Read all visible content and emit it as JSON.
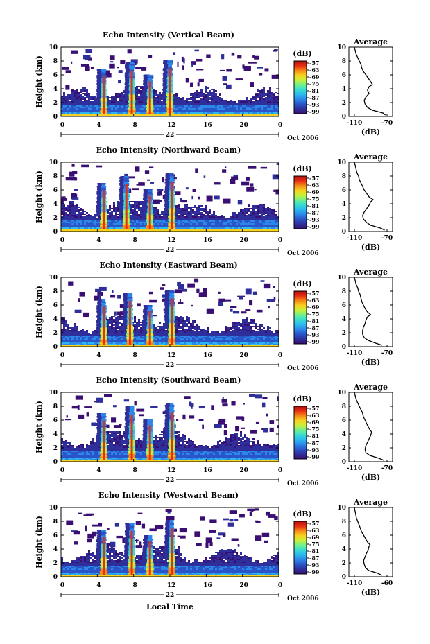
{
  "figure": {
    "x_axis_label": "Local Time",
    "colors": {
      "colormap": [
        "#3a0f73",
        "#2e2f9a",
        "#2a55c8",
        "#2b88e8",
        "#2bb8f0",
        "#37dcd0",
        "#6ff08e",
        "#c9f03a",
        "#f7d21e",
        "#f58a15",
        "#e82d12",
        "#b40f10"
      ],
      "profile_line": "#000000",
      "background": "#ffffff"
    }
  },
  "chart_data": [
    {
      "type": "heatmap",
      "title": "Echo Intensity (Vertical Beam)",
      "ylabel": "Height (km)",
      "xlabel": "",
      "x_ticks": [
        "0",
        "4",
        "8",
        "12",
        "16",
        "20",
        "0"
      ],
      "xlim": [
        0,
        24
      ],
      "y_ticks": [
        "0",
        "2",
        "4",
        "6",
        "8",
        "10"
      ],
      "ylim": [
        0,
        10
      ],
      "date_label": "22",
      "date_suffix": "Oct 2006",
      "colorbar": {
        "unit": "(dB)",
        "ticks": [
          "-57",
          "-63",
          "-69",
          "-75",
          "-81",
          "-87",
          "-93",
          "-99"
        ],
        "range": [
          -99,
          -57
        ]
      },
      "convective_columns_hours": [
        4.7,
        7.8,
        9.8,
        12.0
      ],
      "avg_panel": {
        "title": "Average",
        "xlabel": "(dB)",
        "x_ticks": [
          "-110",
          "-70"
        ],
        "y_ticks": [
          "0",
          "2",
          "4",
          "6",
          "8",
          "10"
        ],
        "profile_height_km": [
          0.2,
          0.5,
          0.9,
          1.3,
          1.8,
          2.3,
          2.8,
          3.3,
          3.8,
          4.3,
          4.6,
          5.0,
          5.5,
          6.0,
          6.5,
          7.0,
          7.5,
          8.0,
          8.5,
          9.0,
          9.5,
          10.0
        ],
        "profile_db": [
          -72,
          -75,
          -88,
          -94,
          -97,
          -98,
          -96,
          -92,
          -94,
          -92,
          -88,
          -90,
          -93,
          -96,
          -99,
          -101,
          -102,
          -104,
          -106,
          -108,
          -109,
          -110
        ]
      }
    },
    {
      "type": "heatmap",
      "title": "Echo Intensity (Northward Beam)",
      "ylabel": "Height (km)",
      "xlabel": "",
      "x_ticks": [
        "0",
        "4",
        "8",
        "12",
        "16",
        "20",
        "0"
      ],
      "xlim": [
        0,
        24
      ],
      "y_ticks": [
        "0",
        "2",
        "4",
        "6",
        "8",
        "10"
      ],
      "ylim": [
        0,
        10
      ],
      "date_label": "22",
      "date_suffix": "Oct 2006",
      "colorbar": {
        "unit": "(dB)",
        "ticks": [
          "-57",
          "-63",
          "-69",
          "-75",
          "-81",
          "-87",
          "-93",
          "-99"
        ],
        "range": [
          -99,
          -57
        ]
      },
      "convective_columns_hours": [
        4.7,
        7.2,
        9.8,
        12.2
      ],
      "avg_panel": {
        "title": "Average",
        "xlabel": "(dB)",
        "x_ticks": [
          "-110",
          "-70"
        ],
        "y_ticks": [
          "0",
          "2",
          "4",
          "6",
          "8",
          "10"
        ],
        "profile_height_km": [
          0.2,
          0.5,
          0.9,
          1.3,
          1.8,
          2.3,
          2.8,
          3.3,
          3.8,
          4.3,
          4.6,
          5.0,
          5.5,
          6.0,
          6.5,
          7.0,
          7.5,
          8.0,
          8.5,
          9.0,
          9.5,
          10.0
        ],
        "profile_db": [
          -73,
          -78,
          -90,
          -95,
          -99,
          -100,
          -98,
          -95,
          -92,
          -90,
          -87,
          -92,
          -95,
          -98,
          -100,
          -102,
          -104,
          -105,
          -107,
          -108,
          -109,
          -110
        ]
      }
    },
    {
      "type": "heatmap",
      "title": "Echo Intensity (Eastward Beam)",
      "ylabel": "Height (km)",
      "xlabel": "",
      "x_ticks": [
        "0",
        "4",
        "8",
        "12",
        "16",
        "20",
        "0"
      ],
      "xlim": [
        0,
        24
      ],
      "y_ticks": [
        "0",
        "2",
        "4",
        "6",
        "8",
        "10"
      ],
      "ylim": [
        0,
        10
      ],
      "date_label": "22",
      "date_suffix": "Oct 2006",
      "colorbar": {
        "unit": "(dB)",
        "ticks": [
          "-57",
          "-63",
          "-69",
          "-75",
          "-81",
          "-87",
          "-93",
          "-99"
        ],
        "range": [
          -99,
          -57
        ]
      },
      "convective_columns_hours": [
        4.7,
        7.6,
        9.8,
        12.2
      ],
      "avg_panel": {
        "title": "Average",
        "xlabel": "(dB)",
        "x_ticks": [
          "-110",
          "-70"
        ],
        "y_ticks": [
          "0",
          "2",
          "4",
          "6",
          "8",
          "10"
        ],
        "profile_height_km": [
          0.2,
          0.5,
          0.9,
          1.3,
          1.8,
          2.3,
          2.8,
          3.3,
          3.8,
          4.3,
          4.6,
          5.0,
          5.5,
          6.0,
          6.5,
          7.0,
          7.5,
          8.0,
          8.5,
          9.0,
          9.5,
          10.0
        ],
        "profile_db": [
          -76,
          -84,
          -93,
          -98,
          -100,
          -100,
          -99,
          -97,
          -96,
          -94,
          -90,
          -94,
          -97,
          -99,
          -101,
          -102,
          -103,
          -105,
          -106,
          -108,
          -109,
          -110
        ]
      }
    },
    {
      "type": "heatmap",
      "title": "Echo Intensity (Southward Beam)",
      "ylabel": "Height (km)",
      "xlabel": "",
      "x_ticks": [
        "0",
        "4",
        "8",
        "12",
        "16",
        "20",
        "0"
      ],
      "xlim": [
        0,
        24
      ],
      "y_ticks": [
        "0",
        "2",
        "4",
        "6",
        "8",
        "10"
      ],
      "ylim": [
        0,
        10
      ],
      "date_label": "22",
      "date_suffix": "Oct 2006",
      "colorbar": {
        "unit": "(dB)",
        "ticks": [
          "-57",
          "-63",
          "-69",
          "-75",
          "-81",
          "-87",
          "-93",
          "-99"
        ],
        "range": [
          -99,
          -57
        ]
      },
      "convective_columns_hours": [
        4.7,
        7.8,
        9.8,
        12.2
      ],
      "avg_panel": {
        "title": "Average",
        "xlabel": "(dB)",
        "x_ticks": [
          "-110",
          "-70"
        ],
        "y_ticks": [
          "0",
          "2",
          "4",
          "6",
          "8",
          "10"
        ],
        "profile_height_km": [
          0.2,
          0.5,
          0.9,
          1.3,
          1.8,
          2.3,
          2.8,
          3.3,
          3.8,
          4.3,
          4.6,
          5.0,
          5.5,
          6.0,
          6.5,
          7.0,
          7.5,
          8.0,
          8.5,
          9.0,
          9.5,
          10.0
        ],
        "profile_db": [
          -74,
          -80,
          -91,
          -96,
          -97,
          -96,
          -94,
          -92,
          -90,
          -89,
          -91,
          -93,
          -95,
          -97,
          -99,
          -100,
          -102,
          -104,
          -106,
          -108,
          -109,
          -110
        ]
      }
    },
    {
      "type": "heatmap",
      "title": "Echo Intensity (Westward Beam)",
      "ylabel": "Height (km)",
      "xlabel": "",
      "x_ticks": [
        "0",
        "4",
        "8",
        "12",
        "16",
        "20",
        "0"
      ],
      "xlim": [
        0,
        24
      ],
      "y_ticks": [
        "0",
        "2",
        "4",
        "6",
        "8",
        "10"
      ],
      "ylim": [
        0,
        10
      ],
      "date_label": "22",
      "date_suffix": "Oct 2006",
      "colorbar": {
        "unit": "(dB)",
        "ticks": [
          "-57",
          "-63",
          "-69",
          "-75",
          "-81",
          "-87",
          "-93",
          "-99"
        ],
        "range": [
          -99,
          -57
        ]
      },
      "convective_columns_hours": [
        4.7,
        7.8,
        9.8,
        12.2
      ],
      "avg_panel": {
        "title": "Average",
        "xlabel": "(dB)",
        "x_ticks": [
          "-110",
          "-60"
        ],
        "y_ticks": [
          "0",
          "2",
          "4",
          "6",
          "8",
          "10"
        ],
        "profile_height_km": [
          0.2,
          0.5,
          0.9,
          1.3,
          1.8,
          2.3,
          2.8,
          3.3,
          3.8,
          4.3,
          4.6,
          5.0,
          5.5,
          6.0,
          6.5,
          7.0,
          7.5,
          8.0,
          8.5,
          9.0,
          9.5,
          10.0
        ],
        "profile_db": [
          -68,
          -74,
          -88,
          -93,
          -95,
          -96,
          -94,
          -92,
          -89,
          -88,
          -86,
          -90,
          -93,
          -96,
          -99,
          -101,
          -103,
          -105,
          -107,
          -108,
          -109,
          -110
        ]
      }
    }
  ]
}
